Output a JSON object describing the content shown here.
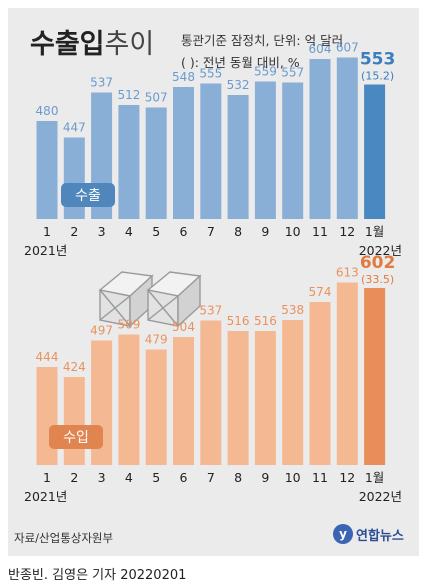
{
  "title": {
    "main": "수출입",
    "sub": "추이"
  },
  "note_line1": "통관기준 잠정치, 단위: 억 달러",
  "note_line2": "( ): 전년 동월 대비, %",
  "source": "자료/산업통상자원부",
  "credit": "반종빈. 김영은 기자  20220201",
  "logo_text": "연합뉴스",
  "logo_mark": "y",
  "colors": {
    "export_bar": "#8aafd6",
    "export_last": "#4a88c2",
    "export_value": "#6a9bd0",
    "export_highlight": "#3b7dbf",
    "import_bar": "#f4b992",
    "import_last": "#e98d5a",
    "import_value": "#e8935f",
    "import_highlight": "#e17b3f",
    "export_badge": "#4f86bc",
    "import_badge": "#e08550"
  },
  "chart_data": [
    {
      "type": "bar",
      "label": "수출",
      "categories": [
        "1",
        "2",
        "3",
        "4",
        "5",
        "6",
        "7",
        "8",
        "9",
        "10",
        "11",
        "12",
        "1월"
      ],
      "year_labels": [
        "2021년",
        "2022년"
      ],
      "values": [
        480,
        447,
        537,
        512,
        507,
        548,
        555,
        532,
        559,
        557,
        604,
        607,
        553
      ],
      "value_labels": [
        "480",
        "447",
        "537",
        "512",
        "507",
        "548",
        "555",
        "532",
        "559",
        "557",
        "604",
        "607",
        "553"
      ],
      "last_change": "(15.2)"
    },
    {
      "type": "bar",
      "label": "수입",
      "categories": [
        "1",
        "2",
        "3",
        "4",
        "5",
        "6",
        "7",
        "8",
        "9",
        "10",
        "11",
        "12",
        "1월"
      ],
      "year_labels": [
        "2021년",
        "2022년"
      ],
      "values": [
        444,
        424,
        497,
        509,
        479,
        504,
        537,
        516,
        516,
        538,
        574,
        613,
        602
      ],
      "value_labels": [
        "444",
        "424",
        "497",
        "509",
        "479",
        "504",
        "537",
        "516",
        "516",
        "538",
        "574",
        "613",
        "602"
      ],
      "last_change": "(33.5)"
    }
  ]
}
